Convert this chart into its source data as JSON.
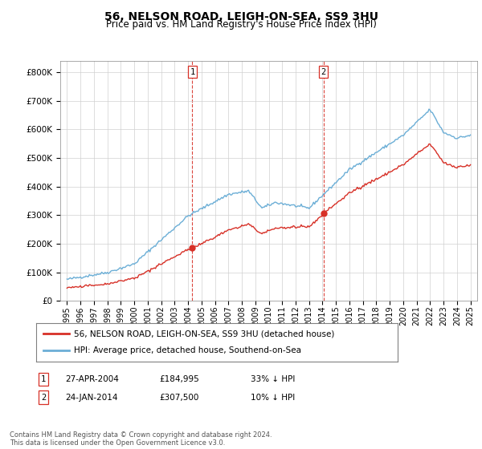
{
  "title": "56, NELSON ROAD, LEIGH-ON-SEA, SS9 3HU",
  "subtitle": "Price paid vs. HM Land Registry's House Price Index (HPI)",
  "legend_line1": "56, NELSON ROAD, LEIGH-ON-SEA, SS9 3HU (detached house)",
  "legend_line2": "HPI: Average price, detached house, Southend-on-Sea",
  "annotation1_label": "1",
  "annotation1_date": "27-APR-2004",
  "annotation1_price": "£184,995",
  "annotation1_hpi": "33% ↓ HPI",
  "annotation2_label": "2",
  "annotation2_date": "24-JAN-2014",
  "annotation2_price": "£307,500",
  "annotation2_hpi": "10% ↓ HPI",
  "footer": "Contains HM Land Registry data © Crown copyright and database right 2024.\nThis data is licensed under the Open Government Licence v3.0.",
  "sale1_year": 2004.32,
  "sale1_value": 184995,
  "sale2_year": 2014.07,
  "sale2_value": 307500,
  "hpi_color": "#6baed6",
  "price_color": "#d73027",
  "sale_marker_color": "#d73027",
  "vline_color": "#d73027",
  "ylim_min": 0,
  "ylim_max": 840000,
  "xlim_min": 1994.5,
  "xlim_max": 2025.5
}
